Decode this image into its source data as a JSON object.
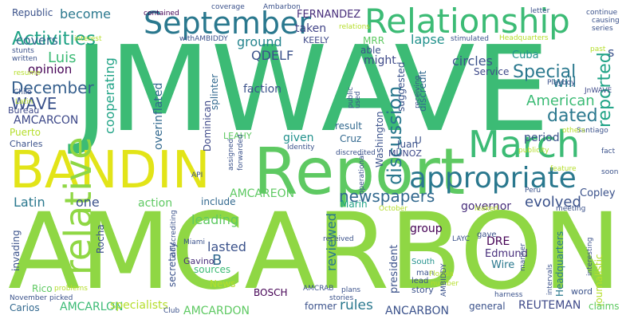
{
  "words": [
    {
      "text": "JMWAVE",
      "color": "#3cbb75"
    },
    {
      "text": "AMCARBON",
      "color": "#8fd744"
    },
    {
      "text": "Report",
      "color": "#5ec962"
    },
    {
      "text": "BANDIN",
      "color": "#e2e418"
    },
    {
      "text": "Relationship",
      "color": "#3cbb75"
    },
    {
      "text": "September",
      "color": "#2a788e"
    },
    {
      "text": "March",
      "color": "#3cbb75"
    },
    {
      "text": "appropriate",
      "color": "#2a788e"
    },
    {
      "text": "discussion",
      "color": "#2a788e"
    },
    {
      "text": "Activities",
      "color": "#20a386"
    },
    {
      "text": "newspapers",
      "color": "#31688e"
    },
    {
      "text": "relative",
      "color": "#8fd744"
    },
    {
      "text": "December",
      "color": "#355f8d"
    },
    {
      "text": "Special",
      "color": "#2a788e"
    },
    {
      "text": "reported",
      "color": "#20a386"
    },
    {
      "text": "dated",
      "color": "#2a788e"
    },
    {
      "text": "WAVE",
      "color": "#3b528b"
    },
    {
      "text": "Luis",
      "color": "#3cbb75"
    },
    {
      "text": "will",
      "color": "#2a788e"
    },
    {
      "text": "American",
      "color": "#3cbb75"
    },
    {
      "text": "covers",
      "color": "#31688e"
    },
    {
      "text": "become",
      "color": "#2a788e"
    },
    {
      "text": "opinion",
      "color": "#440154"
    },
    {
      "text": "AMCARCON",
      "color": "#3e4989"
    },
    {
      "text": "cooperating",
      "color": "#20a386"
    },
    {
      "text": "ground",
      "color": "#25848e"
    },
    {
      "text": "QDELF",
      "color": "#3b528b"
    },
    {
      "text": "taken",
      "color": "#414487"
    },
    {
      "text": "lapse",
      "color": "#21918c"
    },
    {
      "text": "KEELY",
      "color": "#3e4989"
    },
    {
      "text": "FERNANDEZ",
      "color": "#472d7b"
    },
    {
      "text": "Republic",
      "color": "#3b528b"
    },
    {
      "text": "Cuba",
      "color": "#21918c"
    },
    {
      "text": "circles",
      "color": "#3b528b"
    },
    {
      "text": "Service",
      "color": "#3e4989"
    },
    {
      "text": "AMCAREON",
      "color": "#5ec962"
    },
    {
      "text": "evolved",
      "color": "#3b528b"
    },
    {
      "text": "Latin",
      "color": "#2a788e"
    },
    {
      "text": "one",
      "color": "#3b528b"
    },
    {
      "text": "action",
      "color": "#5ec962"
    },
    {
      "text": "include",
      "color": "#31688e"
    },
    {
      "text": "governor",
      "color": "#472d7b"
    },
    {
      "text": "Copley",
      "color": "#3b528b"
    },
    {
      "text": "lasted",
      "color": "#3b528b"
    },
    {
      "text": "leading",
      "color": "#5ec962"
    },
    {
      "text": "reviewed",
      "color": "#2a788e"
    },
    {
      "text": "rules",
      "color": "#2a788e"
    },
    {
      "text": "AMCARLON",
      "color": "#3cbb75"
    },
    {
      "text": "AMCARDON",
      "color": "#5ec962"
    },
    {
      "text": "ANCARBON",
      "color": "#3b528b"
    },
    {
      "text": "REUTEMAN",
      "color": "#3e4989"
    },
    {
      "text": "specialists",
      "color": "#b5de2b"
    },
    {
      "text": "journalistic",
      "color": "#b5de2b"
    },
    {
      "text": "claims",
      "color": "#5ec962"
    },
    {
      "text": "Headquarters",
      "color": "#2a788e"
    },
    {
      "text": "Wire",
      "color": "#2a788e"
    },
    {
      "text": "Edmund",
      "color": "#472d7b"
    },
    {
      "text": "DRE",
      "color": "#440154"
    },
    {
      "text": "president",
      "color": "#3b528b"
    },
    {
      "text": "group",
      "color": "#440154"
    },
    {
      "text": "Marin",
      "color": "#20a386"
    },
    {
      "text": "Juan",
      "color": "#3b528b"
    },
    {
      "text": "Cruz",
      "color": "#31688e"
    },
    {
      "text": "MUNOZ",
      "color": "#3e4989"
    },
    {
      "text": "given",
      "color": "#21918c"
    },
    {
      "text": "result",
      "color": "#31688e"
    },
    {
      "text": "period",
      "color": "#3b528b"
    },
    {
      "text": "Washington",
      "color": "#3b528b"
    },
    {
      "text": "Charles",
      "color": "#3b528b"
    },
    {
      "text": "Puerto",
      "color": "#b5de2b"
    },
    {
      "text": "Rico",
      "color": "#5ec962"
    },
    {
      "text": "Carios",
      "color": "#31688e"
    },
    {
      "text": "Dominican",
      "color": "#3e4989"
    },
    {
      "text": "Bureau",
      "color": "#3e4989"
    },
    {
      "text": "LEAHY",
      "color": "#5ec962"
    },
    {
      "text": "faction",
      "color": "#3b528b"
    },
    {
      "text": "splinter",
      "color": "#31688e"
    },
    {
      "text": "MRR",
      "color": "#5ec962"
    },
    {
      "text": "able",
      "color": "#3b528b"
    },
    {
      "text": "might",
      "color": "#3e4989"
    },
    {
      "text": "suggested",
      "color": "#3b528b"
    },
    {
      "text": "discredit",
      "color": "#31688e"
    },
    {
      "text": "overinflated",
      "color": "#31688e"
    },
    {
      "text": "B",
      "color": "#31688e"
    },
    {
      "text": "News",
      "color": "#b5de2b"
    },
    {
      "text": "sources",
      "color": "#3cbb75"
    },
    {
      "text": "Gavino",
      "color": "#472d7b"
    },
    {
      "text": "secretary",
      "color": "#3b528b"
    },
    {
      "text": "BOSCH",
      "color": "#440154"
    },
    {
      "text": "Rocha",
      "color": "#3b528b"
    },
    {
      "text": "invading",
      "color": "#3b528b"
    },
    {
      "text": "former",
      "color": "#3b528b"
    },
    {
      "text": "general",
      "color": "#3b528b"
    },
    {
      "text": "story",
      "color": "#3b528b"
    },
    {
      "text": "man",
      "color": "#3b528b"
    },
    {
      "text": "lead",
      "color": "#3b528b"
    },
    {
      "text": "South",
      "color": "#21918c"
    },
    {
      "text": "word",
      "color": "#3b528b"
    },
    {
      "text": "LAYC",
      "color": "#3b528b"
    },
    {
      "text": "Peru",
      "color": "#3b528b"
    },
    {
      "text": "gave",
      "color": "#3b528b"
    },
    {
      "text": "API",
      "color": "#3b528b"
    },
    {
      "text": "Miami",
      "color": "#3b528b"
    },
    {
      "text": "received",
      "color": "#3b528b"
    },
    {
      "text": "publicity",
      "color": "#b5de2b"
    },
    {
      "text": "Santiago",
      "color": "#3b528b"
    },
    {
      "text": "soon",
      "color": "#3b528b"
    },
    {
      "text": "fact",
      "color": "#3b528b"
    },
    {
      "text": "meeting",
      "color": "#3b528b"
    },
    {
      "text": "feature",
      "color": "#b5de2b"
    },
    {
      "text": "Identity",
      "color": "#3b528b"
    },
    {
      "text": "discredited",
      "color": "#3b528b"
    },
    {
      "text": "U",
      "color": "#3b528b"
    },
    {
      "text": "others",
      "color": "#b5de2b"
    },
    {
      "text": "Playboy",
      "color": "#3b528b"
    },
    {
      "text": "JnWAVE",
      "color": "#3e4989"
    },
    {
      "text": "past",
      "color": "#b5de2b"
    },
    {
      "text": "continue",
      "color": "#3b528b"
    },
    {
      "text": "causing",
      "color": "#3b528b"
    },
    {
      "text": "series",
      "color": "#3b528b"
    },
    {
      "text": "letter",
      "color": "#3b528b"
    },
    {
      "text": "stimulated",
      "color": "#3b528b"
    },
    {
      "text": "Headquarters",
      "color": "#b5de2b"
    },
    {
      "text": "Ambarbon",
      "color": "#3b528b"
    },
    {
      "text": "coverage",
      "color": "#3b528b"
    },
    {
      "text": "contained",
      "color": "#440154"
    },
    {
      "text": "relations",
      "color": "#b5de2b"
    },
    {
      "text": "interest",
      "color": "#b5de2b"
    },
    {
      "text": "withAMBIDDY",
      "color": "#3b528b"
    },
    {
      "text": "stunts",
      "color": "#3b528b"
    },
    {
      "text": "written",
      "color": "#3b528b"
    },
    {
      "text": "resume",
      "color": "#b5de2b"
    },
    {
      "text": "Chile",
      "color": "#3b528b"
    },
    {
      "text": "Latin",
      "color": "#b5de2b"
    },
    {
      "text": "November",
      "color": "#3b528b"
    },
    {
      "text": "picked",
      "color": "#3b528b"
    },
    {
      "text": "problems",
      "color": "#b5de2b"
    },
    {
      "text": "Club",
      "color": "#3b528b"
    },
    {
      "text": "AMCRAB",
      "color": "#3b528b"
    },
    {
      "text": "Florida",
      "color": "#b5de2b"
    },
    {
      "text": "number",
      "color": "#b5de2b"
    },
    {
      "text": "plans",
      "color": "#3b528b"
    },
    {
      "text": "stories",
      "color": "#3b528b"
    },
    {
      "text": "intervals",
      "color": "#3b528b"
    },
    {
      "text": "harness",
      "color": "#3b528b"
    },
    {
      "text": "interesting",
      "color": "#3b528b"
    },
    {
      "text": "manner",
      "color": "#3b528b"
    },
    {
      "text": "October",
      "color": "#b5de2b"
    },
    {
      "text": "assigned",
      "color": "#3b528b"
    },
    {
      "text": "forwarded",
      "color": "#3b528b"
    },
    {
      "text": "operational",
      "color": "#3b528b"
    },
    {
      "text": "indiscrediting",
      "color": "#3b528b"
    },
    {
      "text": "used",
      "color": "#3b528b"
    },
    {
      "text": "public",
      "color": "#3b528b"
    },
    {
      "text": "receiving",
      "color": "#3b528b"
    },
    {
      "text": "AMBIDDY",
      "color": "#3b528b"
    },
    {
      "text": "leaked",
      "color": "#b5de2b"
    },
    {
      "text": "s",
      "color": "#3b528b"
    }
  ]
}
